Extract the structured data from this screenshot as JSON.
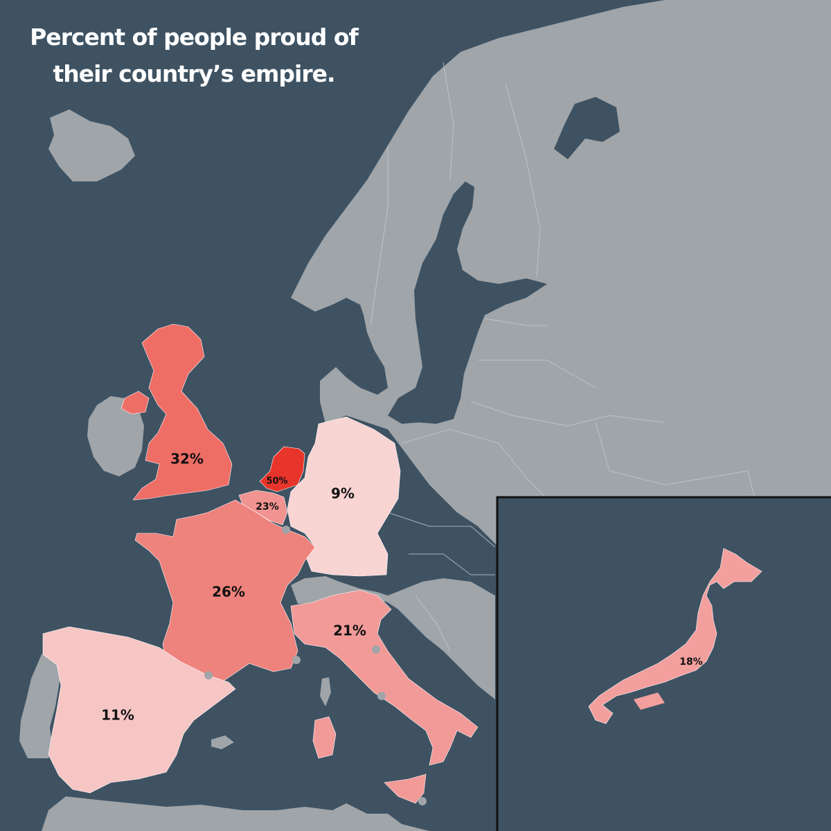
{
  "title": {
    "line1": "Percent of people proud of",
    "line2": "their country’s empire."
  },
  "colors": {
    "sea": "#3e5262",
    "land": "#9fa5a9",
    "scale_low": "#f8d4d3",
    "scale_high": "#e8352b"
  },
  "regions": [
    {
      "key": "uk",
      "value": "32%",
      "color": "#ee6e66"
    },
    {
      "key": "netherlands",
      "value": "50%",
      "color": "#e8352b"
    },
    {
      "key": "belgium",
      "value": "23%",
      "color": "#f19390"
    },
    {
      "key": "germany",
      "value": "9%",
      "color": "#f8d4d3"
    },
    {
      "key": "france",
      "value": "26%",
      "color": "#ee827c"
    },
    {
      "key": "italy",
      "value": "21%",
      "color": "#f29a98"
    },
    {
      "key": "spain",
      "value": "11%",
      "color": "#f6c6c5"
    },
    {
      "key": "japan",
      "value": "18%",
      "color": "#f29f9e"
    }
  ]
}
